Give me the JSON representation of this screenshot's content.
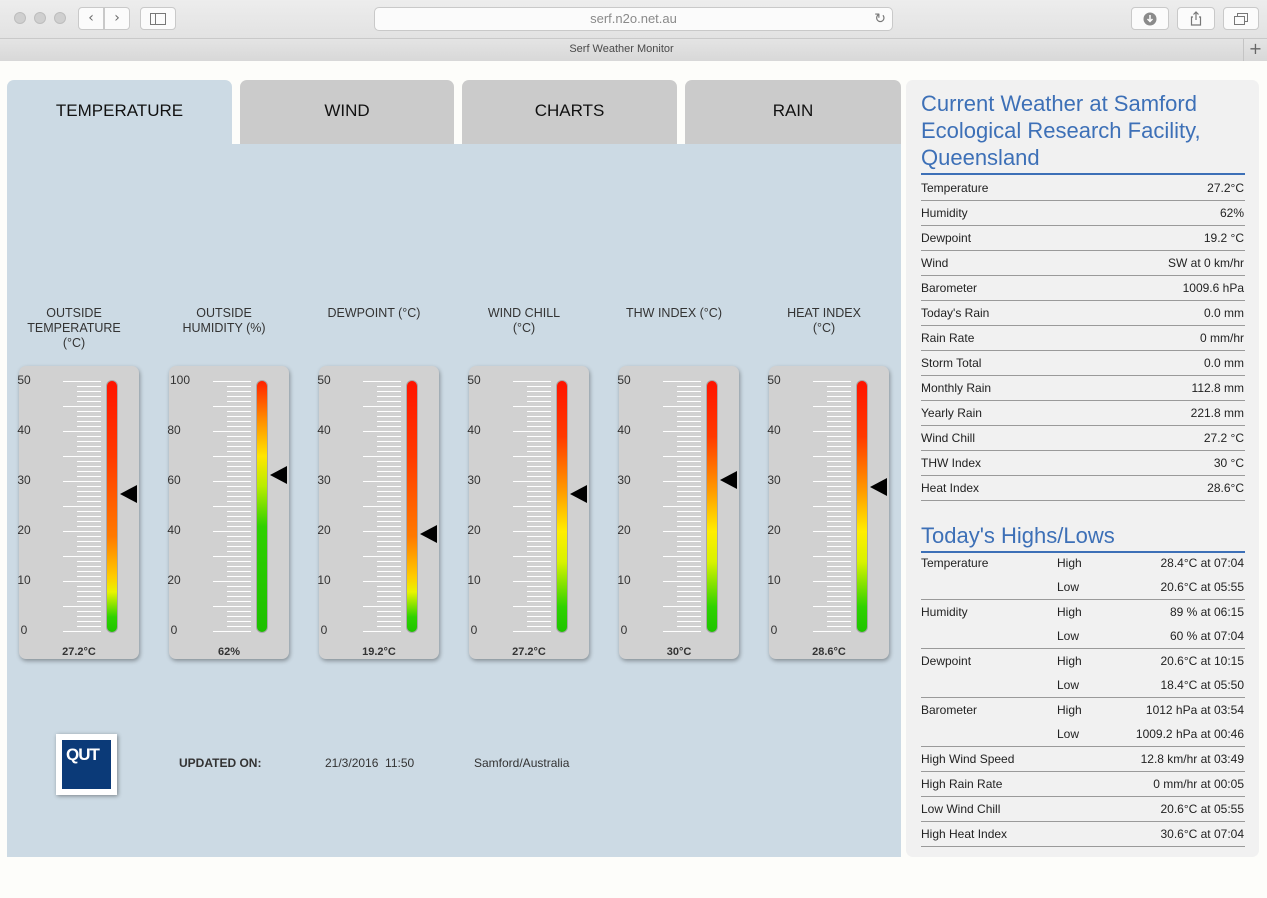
{
  "browser": {
    "url": "serf.n2o.net.au",
    "tab_title": "Serf Weather Monitor",
    "back_icon": "‹",
    "forward_icon": "›",
    "reload_icon": "↻",
    "new_tab_icon": "+"
  },
  "tabs": [
    {
      "label": "TEMPERATURE",
      "active": true
    },
    {
      "label": "WIND",
      "active": false
    },
    {
      "label": "CHARTS",
      "active": false
    },
    {
      "label": "RAIN",
      "active": false
    }
  ],
  "gauges": [
    {
      "title_lines": [
        "OUTSIDE",
        "TEMPERATURE",
        "(°C)"
      ],
      "scale": [
        "50",
        "40",
        "30",
        "20",
        "10",
        "0"
      ],
      "min": 0,
      "max": 50,
      "value": 27.2,
      "reading": "27.2°C",
      "gradient": "red-low"
    },
    {
      "title_lines": [
        "OUTSIDE",
        "HUMIDITY (%)"
      ],
      "scale": [
        "100",
        "80",
        "60",
        "40",
        "20",
        "0"
      ],
      "min": 0,
      "max": 100,
      "value": 62,
      "reading": "62%",
      "gradient": "green-long"
    },
    {
      "title_lines": [
        "DEWPOINT (°C)"
      ],
      "scale": [
        "50",
        "40",
        "30",
        "20",
        "10",
        "0"
      ],
      "min": 0,
      "max": 50,
      "value": 19.2,
      "reading": "19.2°C",
      "gradient": "red-low"
    },
    {
      "title_lines": [
        "WIND CHILL",
        "(°C)"
      ],
      "scale": [
        "50",
        "40",
        "30",
        "20",
        "10",
        "0"
      ],
      "min": 0,
      "max": 50,
      "value": 27.2,
      "reading": "27.2°C",
      "gradient": "red-mid"
    },
    {
      "title_lines": [
        "THW INDEX (°C)"
      ],
      "scale": [
        "50",
        "40",
        "30",
        "20",
        "10",
        "0"
      ],
      "min": 0,
      "max": 50,
      "value": 30,
      "reading": "30°C",
      "gradient": "red-mid"
    },
    {
      "title_lines": [
        "HEAT INDEX",
        "(°C)"
      ],
      "scale": [
        "50",
        "40",
        "30",
        "20",
        "10",
        "0"
      ],
      "min": 0,
      "max": 50,
      "value": 28.6,
      "reading": "28.6°C",
      "gradient": "red-mid"
    }
  ],
  "footer": {
    "logo_text": "QUT",
    "updated_label": "UPDATED ON:",
    "updated_value": "21/3/2016  11:50",
    "location": "Samford/Australia"
  },
  "current": {
    "heading": "Current Weather at Samford Ecological Research Facility, Queensland",
    "rows": [
      {
        "label": "Temperature",
        "value": "27.2°C"
      },
      {
        "label": "Humidity",
        "value": "62%"
      },
      {
        "label": "Dewpoint",
        "value": "19.2 °C"
      },
      {
        "label": "Wind",
        "value": "SW at 0 km/hr"
      },
      {
        "label": "Barometer",
        "value": "1009.6 hPa"
      },
      {
        "label": "Today's Rain",
        "value": "0.0 mm"
      },
      {
        "label": "Rain Rate",
        "value": "0 mm/hr"
      },
      {
        "label": "Storm Total",
        "value": "0.0 mm"
      },
      {
        "label": "Monthly Rain",
        "value": "112.8 mm"
      },
      {
        "label": "Yearly Rain",
        "value": "221.8 mm"
      },
      {
        "label": "Wind Chill",
        "value": "27.2 °C"
      },
      {
        "label": "THW Index",
        "value": "30 °C"
      },
      {
        "label": "Heat Index",
        "value": "28.6°C"
      }
    ]
  },
  "highs_lows": {
    "heading": "Today's Highs/Lows",
    "groups": [
      {
        "label": "Temperature",
        "high_label": "High",
        "high": "28.4°C at 07:04",
        "low_label": "Low",
        "low": "20.6°C at 05:55"
      },
      {
        "label": "Humidity",
        "high_label": "High",
        "high": "89 % at 06:15",
        "low_label": "Low",
        "low": "60 % at 07:04"
      },
      {
        "label": "Dewpoint",
        "high_label": "High",
        "high": "20.6°C at 10:15",
        "low_label": "Low",
        "low": "18.4°C at 05:50"
      },
      {
        "label": "Barometer",
        "high_label": "High",
        "high": "1012 hPa at 03:54",
        "low_label": "Low",
        "low": "1009.2 hPa at 00:46"
      }
    ],
    "singles": [
      {
        "label": "High Wind Speed",
        "value": "12.8 km/hr at 03:49"
      },
      {
        "label": "High Rain Rate",
        "value": "0 mm/hr at 00:05"
      },
      {
        "label": "Low Wind Chill",
        "value": "20.6°C at 05:55"
      },
      {
        "label": "High Heat Index",
        "value": "30.6°C at 07:04"
      }
    ]
  }
}
